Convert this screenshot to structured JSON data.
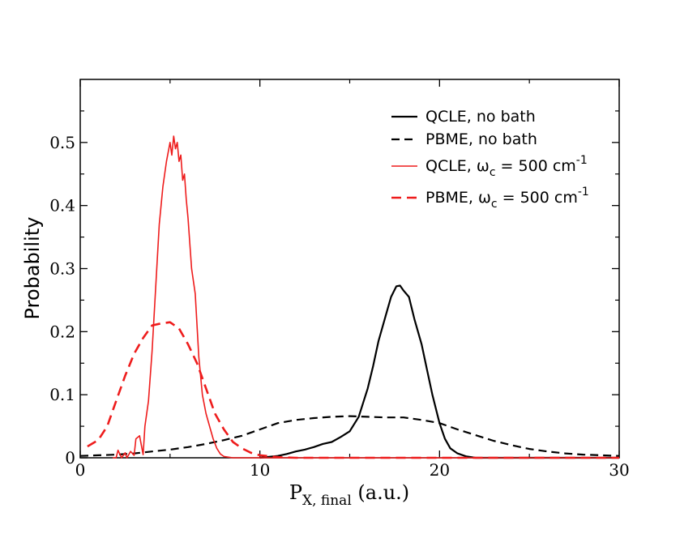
{
  "chart_data": {
    "type": "line",
    "xlabel": {
      "main": "P",
      "sub": "X, final",
      "suffix": " (a.u.)"
    },
    "ylabel": "Probability",
    "xlim": [
      0,
      30
    ],
    "ylim": [
      0,
      0.6
    ],
    "xticks": [
      0,
      10,
      20,
      30
    ],
    "yticks": [
      0,
      0.1,
      0.2,
      0.3,
      0.4,
      0.5
    ],
    "ytick_labels": [
      "0",
      "0.1",
      "0.2",
      "0.3",
      "0.4",
      "0.5"
    ],
    "grid": false,
    "legend_position": "top-right",
    "series": [
      {
        "name": "QCLE, no bath",
        "legend": {
          "pre": "QCLE, no bath"
        },
        "color": "#000000",
        "dash": "solid",
        "width": 2.2,
        "x": [
          10,
          11,
          11.5,
          12,
          12.5,
          13,
          13.5,
          14,
          14.5,
          15,
          15.5,
          16,
          16.3,
          16.6,
          17,
          17.3,
          17.6,
          17.8,
          18,
          18.3,
          18.6,
          19,
          19.3,
          19.6,
          20,
          20.3,
          20.6,
          21,
          21.5,
          22,
          23,
          30
        ],
        "y": [
          0,
          0.003,
          0.006,
          0.01,
          0.013,
          0.017,
          0.022,
          0.025,
          0.033,
          0.042,
          0.065,
          0.11,
          0.145,
          0.185,
          0.225,
          0.255,
          0.272,
          0.273,
          0.265,
          0.255,
          0.22,
          0.18,
          0.14,
          0.1,
          0.055,
          0.03,
          0.015,
          0.007,
          0.002,
          0.0,
          0.0,
          0.0
        ]
      },
      {
        "name": "PBME, no bath",
        "legend": {
          "pre": "PBME, no bath"
        },
        "color": "#000000",
        "dash": "10,6",
        "width": 2.2,
        "x": [
          0,
          1,
          2,
          3,
          4,
          5,
          6,
          7,
          8,
          9,
          10,
          11,
          12,
          13,
          14,
          15,
          16,
          17,
          18,
          19,
          20,
          21,
          22,
          23,
          24,
          25,
          26,
          27,
          28,
          29,
          30
        ],
        "y": [
          0.003,
          0.004,
          0.005,
          0.007,
          0.01,
          0.013,
          0.017,
          0.022,
          0.028,
          0.035,
          0.045,
          0.055,
          0.06,
          0.063,
          0.065,
          0.066,
          0.065,
          0.064,
          0.064,
          0.06,
          0.055,
          0.045,
          0.036,
          0.027,
          0.02,
          0.014,
          0.01,
          0.007,
          0.005,
          0.004,
          0.003
        ]
      },
      {
        "name": "QCLE, ωc = 500 cm-1",
        "legend": {
          "pre": "QCLE, ω",
          "sub": "c",
          "mid": " = 500 cm",
          "sup": "-1"
        },
        "color": "#ee1c1c",
        "dash": "solid",
        "width": 1.6,
        "x": [
          1.8,
          2.0,
          2.1,
          2.3,
          2.5,
          2.6,
          2.8,
          3.0,
          3.1,
          3.3,
          3.5,
          3.6,
          3.8,
          4.0,
          4.2,
          4.4,
          4.6,
          4.8,
          5.0,
          5.1,
          5.2,
          5.3,
          5.4,
          5.5,
          5.6,
          5.7,
          5.8,
          5.9,
          6.0,
          6.2,
          6.4,
          6.6,
          6.8,
          7.0,
          7.2,
          7.4,
          7.6,
          7.8,
          8.0,
          8.5,
          9.0,
          10,
          30
        ],
        "y": [
          0,
          0,
          0.012,
          0,
          0.008,
          0,
          0.01,
          0.004,
          0.03,
          0.035,
          0.005,
          0.05,
          0.09,
          0.17,
          0.27,
          0.37,
          0.43,
          0.47,
          0.5,
          0.48,
          0.51,
          0.49,
          0.5,
          0.47,
          0.48,
          0.44,
          0.45,
          0.41,
          0.38,
          0.3,
          0.26,
          0.16,
          0.1,
          0.07,
          0.05,
          0.03,
          0.015,
          0.006,
          0.002,
          0.0,
          0.0,
          0.0,
          0.0
        ]
      },
      {
        "name": "PBME, ωc = 500 cm-1",
        "legend": {
          "pre": "PBME, ω",
          "sub": "c",
          "mid": " = 500 cm",
          "sup": "-1"
        },
        "color": "#ee1c1c",
        "dash": "12,7",
        "width": 2.6,
        "x": [
          0.4,
          1,
          1.5,
          2,
          2.5,
          3,
          3.5,
          4,
          4.5,
          5,
          5.5,
          6,
          6.5,
          7,
          7.5,
          8,
          8.5,
          9,
          9.5,
          10,
          11,
          12,
          14,
          16,
          18,
          20,
          22,
          25,
          30
        ],
        "y": [
          0.018,
          0.028,
          0.05,
          0.09,
          0.13,
          0.165,
          0.19,
          0.21,
          0.213,
          0.215,
          0.205,
          0.18,
          0.15,
          0.11,
          0.07,
          0.045,
          0.025,
          0.015,
          0.008,
          0.004,
          0.001,
          0.0,
          0.0,
          0.0,
          0.0,
          0.0,
          0.0,
          0.0,
          0.0
        ]
      }
    ]
  }
}
